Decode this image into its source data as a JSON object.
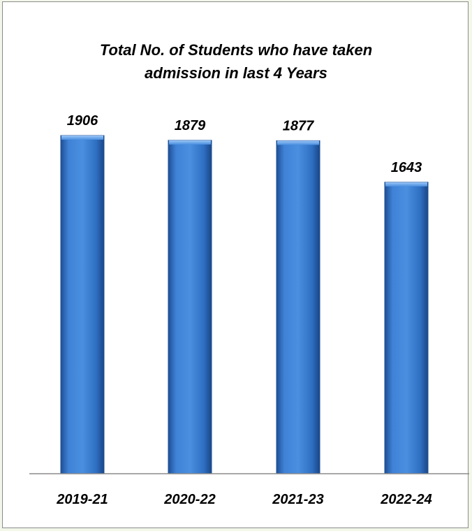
{
  "chart_data": {
    "type": "bar",
    "title_lines": [
      "Total No. of Students who have taken",
      "admission in last 4 Years"
    ],
    "categories": [
      "2019-21",
      "2020-22",
      "2021-23",
      "2022-24"
    ],
    "values": [
      1906,
      1879,
      1877,
      1643
    ],
    "xlabel": "",
    "ylabel": "",
    "legend": "none",
    "grid": false,
    "colors": {
      "bar_top": "#6fa8e8",
      "bar_mid": "#2f6fc2",
      "bar_edge": "#1f4f95",
      "axis": "#8c8c8c"
    }
  }
}
